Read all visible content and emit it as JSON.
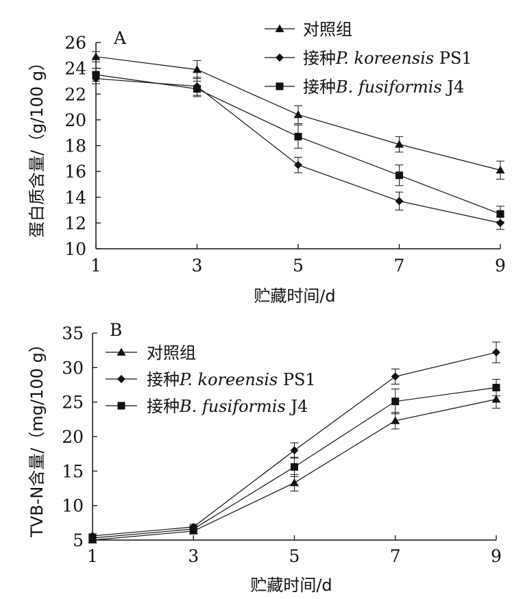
{
  "chart_data": [
    {
      "type": "line",
      "panel_label": "A",
      "x": [
        1,
        3,
        5,
        7,
        9
      ],
      "xlabel": "贮藏时间/d",
      "ylabel": "蛋白质含量/（g/100 g）",
      "xlim": [
        1,
        9
      ],
      "ylim": [
        10,
        26
      ],
      "xticks": [
        1,
        3,
        5,
        7,
        9
      ],
      "yticks": [
        10,
        12,
        14,
        16,
        18,
        20,
        22,
        24,
        26
      ],
      "grid": false,
      "legend_position": "top-right",
      "series": [
        {
          "name": "对照组",
          "marker": "triangle",
          "values": [
            24.9,
            23.9,
            20.4,
            18.1,
            16.1
          ],
          "errors": [
            0.4,
            0.7,
            0.7,
            0.6,
            0.7
          ]
        },
        {
          "name": "接种P. koreensis PS1",
          "legend_parts": [
            {
              "text": "接种",
              "italic": false
            },
            {
              "text": "P. koreensis",
              "italic": true
            },
            {
              "text": " PS1",
              "italic": false
            }
          ],
          "marker": "diamond",
          "values": [
            23.2,
            22.6,
            16.5,
            13.7,
            12.0
          ],
          "errors": [
            0.4,
            0.7,
            0.6,
            0.7,
            0.5
          ]
        },
        {
          "name": "接种B. fusiformis J4",
          "legend_parts": [
            {
              "text": "接种",
              "italic": false
            },
            {
              "text": "B. fusiformis",
              "italic": true
            },
            {
              "text": " J4",
              "italic": false
            }
          ],
          "marker": "square",
          "values": [
            23.5,
            22.4,
            18.7,
            15.7,
            12.7
          ],
          "errors": [
            0.5,
            0.6,
            0.9,
            0.8,
            0.6
          ]
        }
      ]
    },
    {
      "type": "line",
      "panel_label": "B",
      "x": [
        1,
        3,
        5,
        7,
        9
      ],
      "xlabel": "贮藏时间/d",
      "ylabel": "TVB-N含量/（mg/100 g）",
      "xlim": [
        1,
        9
      ],
      "ylim": [
        5,
        35
      ],
      "xticks": [
        1,
        3,
        5,
        7,
        9
      ],
      "yticks": [
        5,
        10,
        15,
        20,
        25,
        30,
        35
      ],
      "grid": false,
      "legend_position": "top-left",
      "series": [
        {
          "name": "对照组",
          "marker": "triangle",
          "values": [
            5.0,
            6.3,
            13.3,
            22.3,
            25.4
          ],
          "errors": [
            0.3,
            0.4,
            1.2,
            1.2,
            1.3
          ]
        },
        {
          "name": "接种P. koreensis PS1",
          "legend_parts": [
            {
              "text": "接种",
              "italic": false
            },
            {
              "text": "P. koreensis",
              "italic": true
            },
            {
              "text": " PS1",
              "italic": false
            }
          ],
          "marker": "diamond",
          "values": [
            5.6,
            6.9,
            18.0,
            28.7,
            32.2
          ],
          "errors": [
            0.3,
            0.4,
            1.1,
            1.1,
            1.5
          ]
        },
        {
          "name": "接种B. fusiformis J4",
          "legend_parts": [
            {
              "text": "接种",
              "italic": false
            },
            {
              "text": "B. fusiformis",
              "italic": true
            },
            {
              "text": " J4",
              "italic": false
            }
          ],
          "marker": "square",
          "values": [
            5.3,
            6.6,
            15.6,
            25.1,
            27.1
          ],
          "errors": [
            0.3,
            0.4,
            1.4,
            1.8,
            1.2
          ]
        }
      ]
    }
  ]
}
